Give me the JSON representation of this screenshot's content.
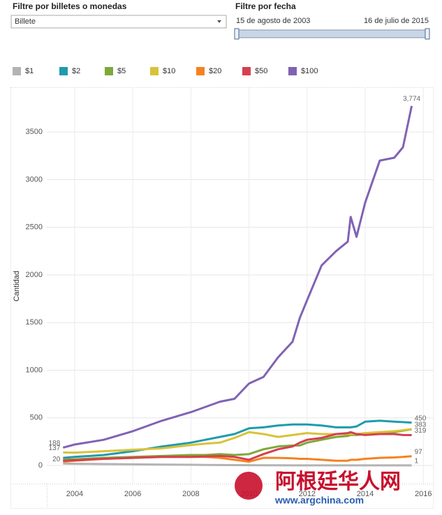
{
  "controls": {
    "type_filter_title": "Filtre por billetes o monedas",
    "type_filter_value": "Billete",
    "date_filter_title": "Filtre por fecha",
    "date_start": "15 de agosto de 2003",
    "date_end": "16 de julio de 2015"
  },
  "chart_data": {
    "type": "line",
    "y_label": "Cantidad",
    "x": [
      2003.6,
      2004,
      2005,
      2006,
      2007,
      2008,
      2008.5,
      2009,
      2009.5,
      2010,
      2010.5,
      2011,
      2011.5,
      2011.75,
      2012,
      2012.5,
      2013,
      2013.4,
      2013.5,
      2013.7,
      2014,
      2014.5,
      2015,
      2015.3,
      2015.6
    ],
    "series": [
      {
        "name": "$1",
        "color": "#b3b3b3",
        "values": [
          20,
          18,
          15,
          12,
          10,
          8,
          6,
          5,
          4,
          3,
          2,
          2,
          1,
          1,
          1,
          1,
          1,
          1,
          1,
          1,
          1,
          1,
          1,
          1,
          1
        ],
        "value_labels": [
          "20",
          null,
          null,
          null,
          null,
          null,
          null,
          null,
          null,
          null,
          null,
          null,
          null,
          null,
          null,
          null,
          null,
          null,
          null,
          null,
          null,
          null,
          null,
          null,
          "1"
        ]
      },
      {
        "name": "$2",
        "color": "#1f9bad",
        "values": [
          80,
          90,
          110,
          150,
          200,
          240,
          270,
          300,
          330,
          390,
          400,
          420,
          430,
          430,
          430,
          420,
          400,
          400,
          400,
          410,
          460,
          470,
          460,
          455,
          450
        ],
        "value_labels": [
          null,
          null,
          null,
          null,
          null,
          null,
          null,
          null,
          null,
          null,
          null,
          null,
          null,
          null,
          null,
          null,
          null,
          null,
          null,
          null,
          null,
          null,
          null,
          null,
          "450"
        ]
      },
      {
        "name": "$5",
        "color": "#7ea83a",
        "values": [
          60,
          65,
          80,
          90,
          100,
          110,
          110,
          120,
          110,
          120,
          170,
          200,
          210,
          210,
          240,
          270,
          300,
          310,
          320,
          320,
          330,
          340,
          350,
          365,
          380
        ]
      },
      {
        "name": "$10",
        "color": "#d9c23a",
        "values": [
          137,
          135,
          150,
          165,
          180,
          215,
          230,
          240,
          290,
          350,
          330,
          300,
          320,
          330,
          340,
          330,
          330,
          330,
          330,
          330,
          340,
          350,
          360,
          370,
          383
        ],
        "value_labels": [
          "137",
          null,
          null,
          null,
          null,
          null,
          null,
          null,
          null,
          null,
          null,
          null,
          null,
          null,
          null,
          null,
          null,
          null,
          null,
          null,
          null,
          null,
          null,
          null,
          "383"
        ]
      },
      {
        "name": "$20",
        "color": "#f5821f",
        "values": [
          40,
          50,
          70,
          80,
          90,
          90,
          90,
          80,
          60,
          40,
          80,
          80,
          75,
          70,
          70,
          60,
          50,
          50,
          60,
          60,
          70,
          80,
          85,
          90,
          97
        ],
        "value_labels": [
          null,
          null,
          null,
          null,
          null,
          null,
          null,
          null,
          null,
          null,
          null,
          null,
          null,
          null,
          null,
          null,
          null,
          null,
          null,
          null,
          null,
          null,
          null,
          null,
          "97"
        ]
      },
      {
        "name": "$50",
        "color": "#d6404e",
        "values": [
          50,
          55,
          70,
          80,
          90,
          90,
          95,
          100,
          90,
          60,
          120,
          170,
          200,
          240,
          270,
          290,
          330,
          340,
          350,
          330,
          320,
          330,
          330,
          320,
          319
        ],
        "value_labels": [
          null,
          null,
          null,
          null,
          null,
          null,
          null,
          null,
          null,
          null,
          null,
          null,
          null,
          null,
          null,
          null,
          null,
          null,
          null,
          null,
          null,
          null,
          null,
          null,
          "319"
        ]
      },
      {
        "name": "$100",
        "color": "#8062b4",
        "values": [
          188,
          220,
          270,
          360,
          470,
          560,
          615,
          670,
          700,
          860,
          930,
          1135,
          1300,
          1550,
          1735,
          2100,
          2250,
          2350,
          2610,
          2400,
          2760,
          3200,
          3230,
          3340,
          3774
        ],
        "value_labels": [
          "188",
          null,
          null,
          null,
          null,
          null,
          null,
          null,
          null,
          null,
          null,
          null,
          null,
          null,
          null,
          null,
          null,
          null,
          null,
          null,
          null,
          null,
          null,
          null,
          "3,774"
        ]
      }
    ],
    "xlim": [
      2003.04,
      2016.33
    ],
    "xticks": [
      2004,
      2006,
      2008,
      2010,
      2012,
      2014,
      2016
    ],
    "ylim": [
      -190,
      3970
    ],
    "yticks": [
      0,
      500,
      1000,
      1500,
      2000,
      2500,
      3000,
      3500
    ],
    "grid": true
  },
  "watermark": {
    "name": "阿根廷华人网",
    "url": "www.argchina.com"
  }
}
